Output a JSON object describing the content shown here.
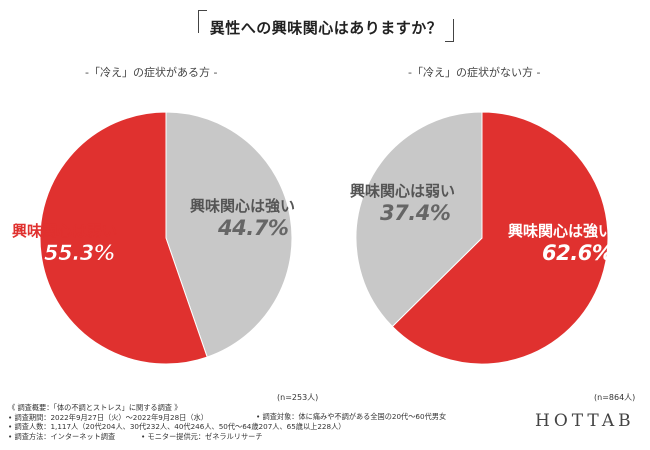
{
  "title": "異性への興味関心はありますか？",
  "colors": {
    "strong": "#c8c8c8",
    "weak": "#e0312f",
    "pie_border": "#ffffff"
  },
  "chart_data": [
    {
      "type": "pie",
      "title": "-「冷え」の症状がある方 -",
      "slices": [
        {
          "label": "興味関心は強い",
          "value": 44.7,
          "display": "44.7%"
        },
        {
          "label": "興味関心は弱い",
          "value": 55.3,
          "display": "55.3%"
        }
      ],
      "sample": "(n=253人)"
    },
    {
      "type": "pie",
      "title": "-「冷え」の症状がない方 -",
      "slices": [
        {
          "label": "興味関心は強い",
          "value": 62.6,
          "display": "62.6%"
        },
        {
          "label": "興味関心は弱い",
          "value": 37.4,
          "display": "37.4%"
        }
      ],
      "sample": "(n=864人)"
    }
  ],
  "notes": {
    "line1": "《 調査概要：「体の不調とストレス」に関する調査 》",
    "line2": "• 調査期間：2022年9月27日（火）〜2022年9月28日（水）",
    "line3": "• 調査人数：1,117人（20代204人、30代232人、40代246人、50代〜64歳207人、65歳以上228人）",
    "line4": "• 調査方法：インターネット調査",
    "target": "• 調査対象：体に痛みや不調がある全国の20代〜60代男女",
    "provider": "• モニター提供元：ゼネラルリサーチ"
  },
  "logo": "HOTTAB"
}
